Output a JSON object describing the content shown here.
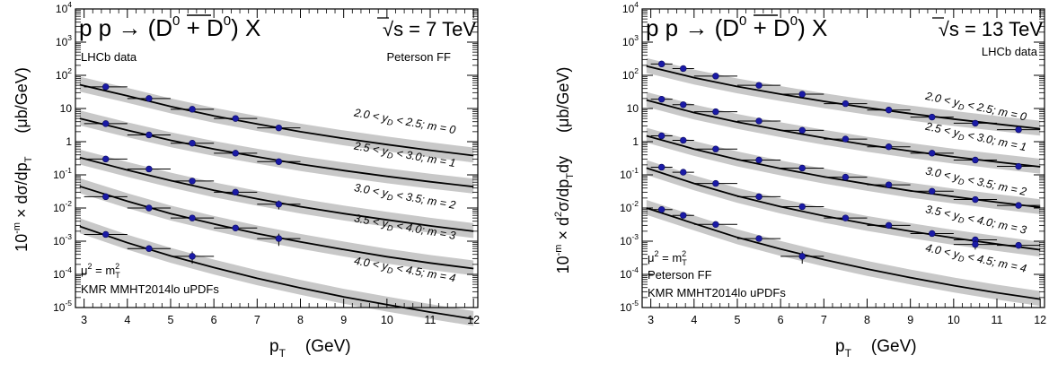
{
  "chart_data": [
    {
      "type": "scatter",
      "title": "p p → (D⁰ + D̅⁰) X",
      "title_parts": {
        "lead": "p p → (D",
        "zero": "0",
        "plus": " + D",
        "bar_zero": "0",
        "tail": ") X"
      },
      "energy": {
        "sqrt": "√",
        "s": "s = 7 TeV"
      },
      "xlabel": {
        "p": "p",
        "sub": "T",
        "unit": "(GeV)"
      },
      "ylabel": {
        "lead": "10",
        "exp": "-m",
        "rest": " × dσ/dp",
        "sub": "T",
        "unit": "(μb/GeV)"
      },
      "xlim": [
        2.8,
        12.1
      ],
      "ylim": [
        1e-05,
        10000
      ],
      "log_y": true,
      "x_ticks": [
        "3",
        "4",
        "5",
        "6",
        "7",
        "8",
        "9",
        "10",
        "11",
        "12"
      ],
      "y_ticks": [
        {
          "base": "10",
          "exp": "-5",
          "v": 1e-05
        },
        {
          "base": "10",
          "exp": "-4",
          "v": 0.0001
        },
        {
          "base": "10",
          "exp": "-3",
          "v": 0.001
        },
        {
          "base": "10",
          "exp": "-2",
          "v": 0.01
        },
        {
          "base": "10",
          "exp": "-1",
          "v": 0.1
        },
        {
          "base": "1",
          "exp": "",
          "v": 1
        },
        {
          "base": "10",
          "exp": "",
          "v": 10
        },
        {
          "base": "10",
          "exp": "2",
          "v": 100
        },
        {
          "base": "10",
          "exp": "3",
          "v": 1000
        },
        {
          "base": "10",
          "exp": "4",
          "v": 10000
        }
      ],
      "annotations": {
        "lhcb": "LHCb data",
        "ff": "Peterson FF",
        "scale": {
          "mu": "μ",
          "two": "2",
          "eq": " = m",
          "msup": "2",
          "msub": "T"
        },
        "updf": "KMR MMHT2014lo uPDFs"
      },
      "series": [
        {
          "label": {
            "a": "2.0 < y",
            "b": "D",
            "c": " < 2.5; m = 0"
          },
          "label_at": [
            10.4,
            3.2
          ],
          "x": [
            3.5,
            4.5,
            5.5,
            6.5,
            7.5
          ],
          "y": [
            45,
            20,
            9.5,
            5,
            2.6
          ],
          "yerr_rel": [
            0.1,
            0.1,
            0.1,
            0.1,
            0.15
          ],
          "curve": [
            [
              2.9,
              52
            ],
            [
              4,
              24
            ],
            [
              5,
              11.5
            ],
            [
              6,
              6
            ],
            [
              7,
              3.4
            ],
            [
              8,
              2.0
            ],
            [
              9,
              1.25
            ],
            [
              10,
              0.82
            ],
            [
              11,
              0.55
            ],
            [
              12,
              0.38
            ]
          ]
        },
        {
          "label": {
            "a": "2.5 < y",
            "b": "D",
            "c": " < 3.0; m = 1"
          },
          "label_at": [
            10.4,
            0.32
          ],
          "x": [
            3.5,
            4.5,
            5.5,
            6.5,
            7.5
          ],
          "y": [
            3.5,
            1.6,
            0.9,
            0.45,
            0.25
          ],
          "yerr_rel": [
            0.1,
            0.1,
            0.1,
            0.12,
            0.18
          ],
          "curve": [
            [
              2.9,
              5
            ],
            [
              4,
              2.2
            ],
            [
              5,
              1.1
            ],
            [
              6,
              0.6
            ],
            [
              7,
              0.35
            ],
            [
              8,
              0.21
            ],
            [
              9,
              0.135
            ],
            [
              10,
              0.09
            ],
            [
              11,
              0.062
            ],
            [
              12,
              0.044
            ]
          ]
        },
        {
          "label": {
            "a": "3.0 < y",
            "b": "D",
            "c": " < 3.5; m = 2"
          },
          "label_at": [
            10.4,
            0.0175
          ],
          "x": [
            3.5,
            4.5,
            5.5,
            6.5,
            7.5
          ],
          "y": [
            0.3,
            0.15,
            0.065,
            0.03,
            0.013
          ],
          "yerr_rel": [
            0.1,
            0.1,
            0.1,
            0.12,
            0.3
          ],
          "curve": [
            [
              2.9,
              0.33
            ],
            [
              4,
              0.14
            ],
            [
              5,
              0.067
            ],
            [
              6,
              0.034
            ],
            [
              7,
              0.019
            ],
            [
              8,
              0.011
            ],
            [
              9,
              0.0068
            ],
            [
              10,
              0.0044
            ],
            [
              11,
              0.0029
            ],
            [
              12,
              0.002
            ]
          ]
        },
        {
          "label": {
            "a": "3.5 < y",
            "b": "D",
            "c": " < 4.0; m = 3"
          },
          "label_at": [
            10.4,
            0.0021
          ],
          "x": [
            3.5,
            4.5,
            5.5,
            6.5,
            7.5
          ],
          "y": [
            0.022,
            0.01,
            0.005,
            0.0025,
            0.0012
          ],
          "yerr_rel": [
            0.1,
            0.1,
            0.12,
            0.15,
            0.4
          ],
          "curve": [
            [
              2.9,
              0.045
            ],
            [
              4,
              0.016
            ],
            [
              5,
              0.0068
            ],
            [
              6,
              0.0033
            ],
            [
              7,
              0.0017
            ],
            [
              8,
              0.00095
            ],
            [
              9,
              0.00056
            ],
            [
              10,
              0.00034
            ],
            [
              11,
              0.00022
            ],
            [
              12,
              0.00015
            ]
          ]
        },
        {
          "label": {
            "a": "4.0 < y",
            "b": "D",
            "c": " < 4.5; m = 4"
          },
          "label_at": [
            10.4,
            0.00011
          ],
          "x": [
            3.5,
            4.5,
            5.5
          ],
          "y": [
            0.0016,
            0.0006,
            0.00035
          ],
          "yerr_rel": [
            0.12,
            0.15,
            0.4
          ],
          "curve": [
            [
              2.9,
              0.0028
            ],
            [
              4,
              0.0009
            ],
            [
              5,
              0.00036
            ],
            [
              6,
              0.00016
            ],
            [
              7,
              7.6e-05
            ],
            [
              8,
              3.9e-05
            ],
            [
              9,
              2.1e-05
            ],
            [
              10,
              1.22e-05
            ],
            [
              11,
              7.3e-06
            ],
            [
              12,
              4.5e-06
            ]
          ]
        }
      ]
    },
    {
      "type": "scatter",
      "title": "p p → (D⁰ + D̅⁰) X",
      "title_parts": {
        "lead": "p p → (D",
        "zero": "0",
        "plus": " + D",
        "bar_zero": "0",
        "tail": ") X"
      },
      "energy": {
        "sqrt": "√",
        "s": "s = 13 TeV"
      },
      "xlabel": {
        "p": "p",
        "sub": "T",
        "unit": "(GeV)"
      },
      "ylabel": {
        "lead": "10",
        "exp": "-m",
        "rest": " × d",
        "d2": "2",
        "rest2": "σ/dp",
        "sub": "T",
        "tail": "dy",
        "unit": "(μb/GeV)"
      },
      "xlim": [
        2.8,
        12.1
      ],
      "ylim": [
        1e-05,
        10000
      ],
      "log_y": true,
      "x_ticks": [
        "3",
        "4",
        "5",
        "6",
        "7",
        "8",
        "9",
        "10",
        "11",
        "12"
      ],
      "y_ticks": [
        {
          "base": "10",
          "exp": "-5",
          "v": 1e-05
        },
        {
          "base": "10",
          "exp": "-4",
          "v": 0.0001
        },
        {
          "base": "10",
          "exp": "-3",
          "v": 0.001
        },
        {
          "base": "10",
          "exp": "-2",
          "v": 0.01
        },
        {
          "base": "10",
          "exp": "-1",
          "v": 0.1
        },
        {
          "base": "1",
          "exp": "",
          "v": 1
        },
        {
          "base": "10",
          "exp": "",
          "v": 10
        },
        {
          "base": "10",
          "exp": "2",
          "v": 100
        },
        {
          "base": "10",
          "exp": "3",
          "v": 1000
        },
        {
          "base": "10",
          "exp": "4",
          "v": 10000
        }
      ],
      "annotations": {
        "lhcb": "LHCb data",
        "ff": "Peterson FF",
        "scale": {
          "mu": "μ",
          "two": "2",
          "eq": " = m",
          "msup": "2",
          "msub": "T"
        },
        "updf": "KMR MMHT2014lo uPDFs"
      },
      "series": [
        {
          "label": {
            "a": "2.0 < y",
            "b": "D",
            "c": " < 2.5; m = 0"
          },
          "label_at": [
            10.5,
            9
          ],
          "x": [
            3.25,
            3.75,
            4.5,
            5.5,
            6.5,
            7.5,
            8.5,
            9.5,
            10.5,
            11.5
          ],
          "y": [
            220,
            160,
            95,
            50,
            27,
            14,
            9,
            5.5,
            3.6,
            2.3
          ],
          "yerr_rel": [
            0.08,
            0.08,
            0.08,
            0.08,
            0.1,
            0.1,
            0.1,
            0.12,
            0.12,
            0.15
          ],
          "curve": [
            [
              2.9,
              190
            ],
            [
              4,
              85
            ],
            [
              5,
              46
            ],
            [
              6,
              27
            ],
            [
              7,
              16.5
            ],
            [
              8,
              10.5
            ],
            [
              9,
              7
            ],
            [
              10,
              4.8
            ],
            [
              11,
              3.4
            ],
            [
              12,
              2.45
            ]
          ]
        },
        {
          "label": {
            "a": "2.5 < y",
            "b": "D",
            "c": " < 3.0; m = 1"
          },
          "label_at": [
            10.5,
            1.1
          ],
          "x": [
            3.25,
            3.75,
            4.5,
            5.5,
            6.5,
            7.5,
            8.5,
            9.5,
            10.5,
            11.5
          ],
          "y": [
            19,
            13,
            8,
            4.2,
            2.2,
            1.2,
            0.7,
            0.45,
            0.28,
            0.18
          ],
          "yerr_rel": [
            0.08,
            0.08,
            0.08,
            0.08,
            0.1,
            0.1,
            0.1,
            0.12,
            0.12,
            0.15
          ],
          "curve": [
            [
              2.9,
              18
            ],
            [
              4,
              7.5
            ],
            [
              5,
              3.9
            ],
            [
              6,
              2.2
            ],
            [
              7,
              1.3
            ],
            [
              8,
              0.8
            ],
            [
              9,
              0.52
            ],
            [
              10,
              0.35
            ],
            [
              11,
              0.245
            ],
            [
              12,
              0.175
            ]
          ]
        },
        {
          "label": {
            "a": "3.0 < y",
            "b": "D",
            "c": " < 3.5; m = 2"
          },
          "label_at": [
            10.5,
            0.05
          ],
          "x": [
            3.25,
            3.75,
            4.5,
            5.5,
            6.5,
            7.5,
            8.5,
            9.5,
            10.5,
            11.5
          ],
          "y": [
            1.5,
            1.1,
            0.6,
            0.28,
            0.16,
            0.085,
            0.05,
            0.032,
            0.018,
            0.012
          ],
          "yerr_rel": [
            0.08,
            0.08,
            0.08,
            0.1,
            0.1,
            0.1,
            0.12,
            0.12,
            0.15,
            0.15
          ],
          "curve": [
            [
              2.9,
              1.5
            ],
            [
              4,
              0.6
            ],
            [
              5,
              0.29
            ],
            [
              6,
              0.155
            ],
            [
              7,
              0.088
            ],
            [
              8,
              0.053
            ],
            [
              9,
              0.033
            ],
            [
              10,
              0.022
            ],
            [
              11,
              0.015
            ],
            [
              12,
              0.0105
            ]
          ]
        },
        {
          "label": {
            "a": "3.5 < y",
            "b": "D",
            "c": " < 4.0; m = 3"
          },
          "label_at": [
            10.5,
            0.0035
          ],
          "x": [
            3.25,
            3.75,
            4.5,
            5.5,
            6.5,
            7.5,
            8.5,
            9.5,
            10.5,
            11.5
          ],
          "y": [
            0.17,
            0.12,
            0.055,
            0.022,
            0.011,
            0.005,
            0.003,
            0.0017,
            0.0011,
            0.00075
          ],
          "yerr_rel": [
            0.08,
            0.08,
            0.1,
            0.1,
            0.12,
            0.12,
            0.15,
            0.15,
            0.2,
            0.2
          ],
          "curve": [
            [
              2.9,
              0.16
            ],
            [
              4,
              0.055
            ],
            [
              5,
              0.023
            ],
            [
              6,
              0.011
            ],
            [
              7,
              0.0058
            ],
            [
              8,
              0.0033
            ],
            [
              9,
              0.002
            ],
            [
              10,
              0.00125
            ],
            [
              11,
              0.00082
            ],
            [
              12,
              0.00055
            ]
          ]
        },
        {
          "label": {
            "a": "4.0 < y",
            "b": "D",
            "c": " < 4.5; m = 4"
          },
          "label_at": [
            10.5,
            0.00024
          ],
          "x": [
            3.25,
            3.75,
            4.5,
            5.5,
            6.5,
            10.5
          ],
          "y": [
            0.009,
            0.006,
            0.0032,
            0.0012,
            0.00035,
            0.0008
          ],
          "yerr_rel": [
            0.1,
            0.1,
            0.12,
            0.15,
            0.4,
            0.3
          ],
          "curve": [
            [
              2.9,
              0.01
            ],
            [
              4,
              0.0034
            ],
            [
              5,
              0.0013
            ],
            [
              6,
              0.00058
            ],
            [
              7,
              0.00028
            ],
            [
              8,
              0.000145
            ],
            [
              9,
              8e-05
            ],
            [
              10,
              4.6e-05
            ],
            [
              11,
              2.8e-05
            ],
            [
              12,
              1.8e-05
            ]
          ]
        }
      ]
    }
  ]
}
